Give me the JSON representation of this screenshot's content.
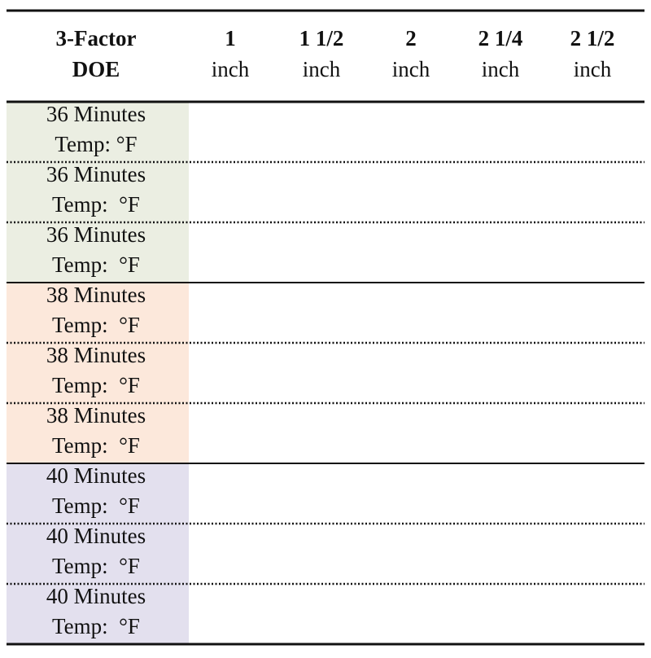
{
  "table": {
    "header": {
      "title": [
        "3-Factor",
        "DOE"
      ],
      "columns": [
        {
          "size": "1",
          "unit": "inch"
        },
        {
          "size": "1 1/2",
          "unit": "inch"
        },
        {
          "size": "2",
          "unit": "inch"
        },
        {
          "size": "2 1/4",
          "unit": "inch"
        },
        {
          "size": "2 1/2",
          "unit": "inch"
        }
      ]
    },
    "rows": [
      {
        "time": "36 Minutes",
        "temp": "Temp: °F"
      },
      {
        "time": "36 Minutes",
        "temp": "Temp:  °F"
      },
      {
        "time": "36 Minutes",
        "temp": "Temp:  °F"
      },
      {
        "time": "38 Minutes",
        "temp": "Temp:  °F"
      },
      {
        "time": "38 Minutes",
        "temp": "Temp:  °F"
      },
      {
        "time": "38 Minutes",
        "temp": "Temp:  °F"
      },
      {
        "time": "40 Minutes",
        "temp": "Temp:  °F"
      },
      {
        "time": "40 Minutes",
        "temp": "Temp:  °F"
      },
      {
        "time": "40 Minutes",
        "temp": "Temp:  °F"
      }
    ]
  }
}
